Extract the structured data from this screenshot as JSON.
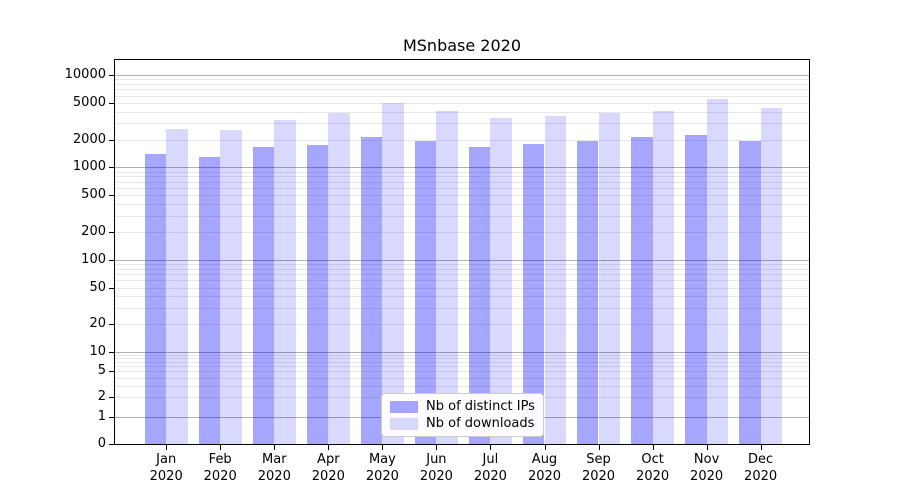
{
  "title": "MSnbase 2020",
  "legend": {
    "items": [
      {
        "label": "Nb of distinct IPs",
        "color": "rgba(0,0,255,0.35)"
      },
      {
        "label": "Nb of downloads",
        "color": "rgba(0,0,255,0.15)"
      }
    ],
    "position": "lower center"
  },
  "y_axis": {
    "tick_values": [
      10000,
      5000,
      2000,
      1000,
      500,
      200,
      100,
      50,
      20,
      10,
      5,
      2,
      1,
      0
    ],
    "tick_labels": [
      "10000",
      "5000",
      "2000",
      "1000",
      "500",
      "200",
      "100",
      "50",
      "20",
      "10",
      "5",
      "2",
      "1",
      "0"
    ]
  },
  "x_axis": {
    "months": [
      "Jan",
      "Feb",
      "Mar",
      "Apr",
      "May",
      "Jun",
      "Jul",
      "Aug",
      "Sep",
      "Oct",
      "Nov",
      "Dec"
    ],
    "year": "2020"
  },
  "chart_data": {
    "type": "bar",
    "title": "MSnbase 2020",
    "categories": [
      "Jan 2020",
      "Feb 2020",
      "Mar 2020",
      "Apr 2020",
      "May 2020",
      "Jun 2020",
      "Jul 2020",
      "Aug 2020",
      "Sep 2020",
      "Oct 2020",
      "Nov 2020",
      "Dec 2020"
    ],
    "series": [
      {
        "name": "Nb of distinct IPs",
        "values": [
          1400,
          1300,
          1650,
          1750,
          2150,
          1950,
          1650,
          1800,
          1950,
          2150,
          2250,
          1950
        ]
      },
      {
        "name": "Nb of downloads",
        "values": [
          2600,
          2550,
          3250,
          3850,
          5000,
          4050,
          3450,
          3600,
          3850,
          4050,
          5450,
          4400
        ]
      }
    ],
    "xlabel": "",
    "ylabel": "",
    "yscale": "symlog",
    "ylim": [
      0,
      14000
    ],
    "y_ticks": [
      0,
      1,
      2,
      5,
      10,
      20,
      50,
      100,
      200,
      500,
      1000,
      2000,
      5000,
      10000
    ],
    "grid": true,
    "legend_position": "lower center"
  },
  "colors": {
    "bar_distinct_ips": "rgba(0,0,255,0.35)",
    "bar_downloads": "rgba(0,0,255,0.15)",
    "grid_major": "#b0b0b0",
    "grid_minor": "#e8e8e8",
    "axis": "#000000",
    "legend_border": "#cccccc",
    "text": "#000000"
  }
}
